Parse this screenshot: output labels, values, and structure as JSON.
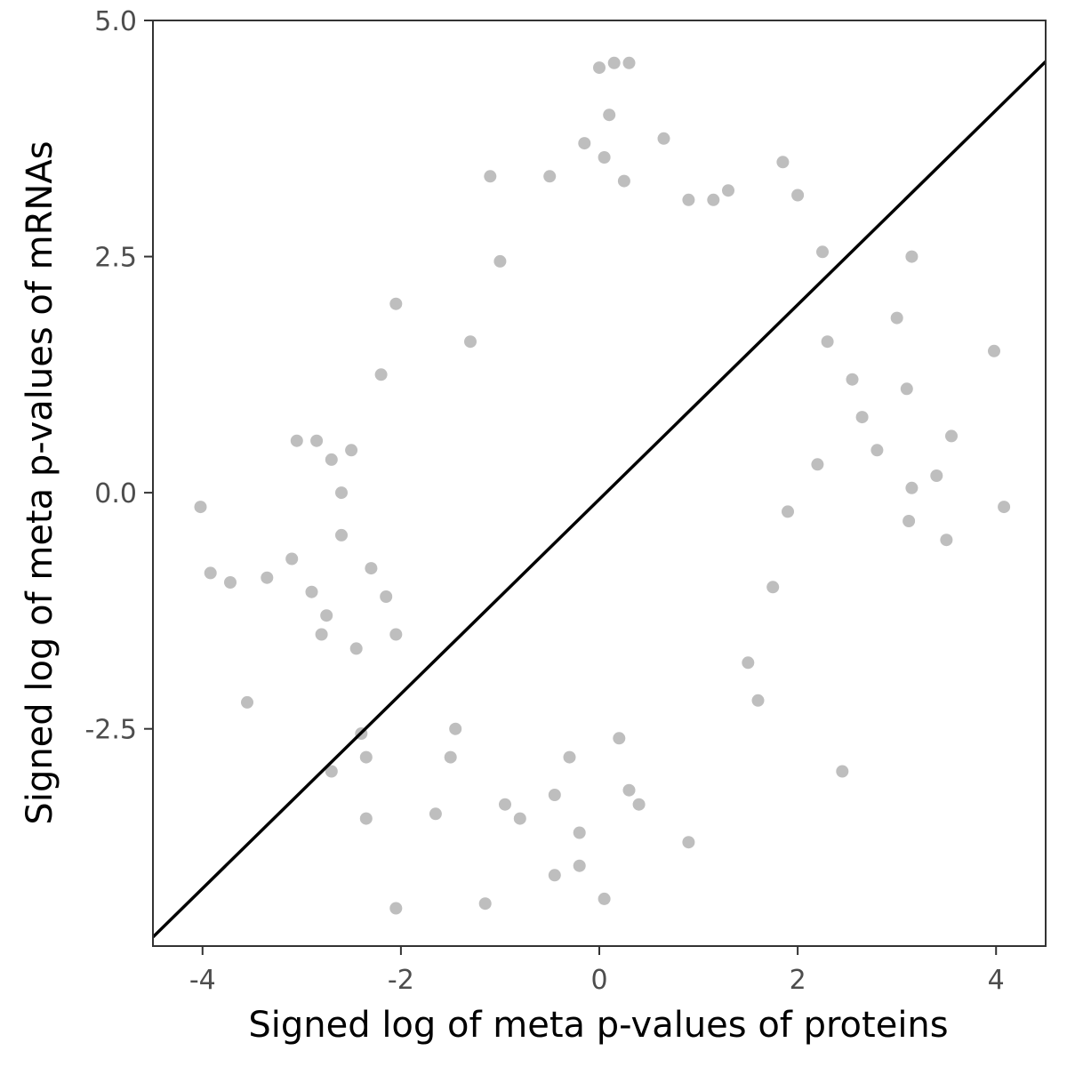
{
  "chart_data": {
    "type": "scatter",
    "title": "",
    "xlabel": "Signed log of meta p-values of proteins",
    "ylabel": "Signed log of meta p-values of mRNAs",
    "xlim": [
      -4.5,
      4.5
    ],
    "ylim": [
      -4.8,
      5.0
    ],
    "x_ticks": [
      -4,
      -2,
      0,
      2,
      4
    ],
    "x_tick_labels": [
      "-4",
      "-2",
      "0",
      "2",
      "4"
    ],
    "y_ticks": [
      -2.5,
      0.0,
      2.5,
      5.0
    ],
    "y_tick_labels": [
      "-2.5",
      "0.0",
      "2.5",
      "5.0"
    ],
    "grid": false,
    "legend": "none",
    "point_color": "#bebebe",
    "line_color": "#000000",
    "fit_line": {
      "slope": 1.03,
      "intercept": -0.07
    },
    "series": [
      {
        "points": [
          [
            -4.02,
            -0.15
          ],
          [
            -3.92,
            -0.85
          ],
          [
            -3.72,
            -0.95
          ],
          [
            -3.55,
            -2.22
          ],
          [
            -3.35,
            -0.9
          ],
          [
            -3.05,
            0.55
          ],
          [
            -2.85,
            0.55
          ],
          [
            -2.75,
            -1.3
          ],
          [
            -2.7,
            -2.95
          ],
          [
            -2.7,
            0.35
          ],
          [
            -2.6,
            -0.45
          ],
          [
            -2.45,
            -1.65
          ],
          [
            -2.4,
            -2.55
          ],
          [
            -2.35,
            -2.8
          ],
          [
            -2.35,
            -3.45
          ],
          [
            -2.2,
            1.25
          ],
          [
            -2.05,
            2.0
          ],
          [
            -2.05,
            -4.4
          ],
          [
            -2.05,
            -1.5
          ],
          [
            -1.65,
            -3.4
          ],
          [
            -1.45,
            -2.5
          ],
          [
            -1.3,
            1.6
          ],
          [
            -1.15,
            -4.35
          ],
          [
            -1.1,
            3.35
          ],
          [
            -1.0,
            2.45
          ],
          [
            -0.95,
            -3.3
          ],
          [
            -0.8,
            -3.45
          ],
          [
            -0.5,
            3.35
          ],
          [
            -0.45,
            -4.05
          ],
          [
            -0.45,
            -3.2
          ],
          [
            -0.2,
            -3.6
          ],
          [
            -0.2,
            -3.95
          ],
          [
            0.0,
            4.5
          ],
          [
            0.05,
            -4.3
          ],
          [
            0.1,
            4.0
          ],
          [
            0.15,
            4.55
          ],
          [
            0.25,
            3.3
          ],
          [
            0.3,
            4.55
          ],
          [
            0.3,
            -3.15
          ],
          [
            0.4,
            -3.3
          ],
          [
            0.65,
            3.75
          ],
          [
            0.9,
            -3.7
          ],
          [
            0.9,
            3.1
          ],
          [
            1.15,
            3.1
          ],
          [
            1.5,
            -1.8
          ],
          [
            1.85,
            3.5
          ],
          [
            2.0,
            3.15
          ],
          [
            2.25,
            2.55
          ],
          [
            2.45,
            -2.95
          ],
          [
            2.8,
            0.45
          ],
          [
            3.0,
            1.85
          ],
          [
            3.1,
            1.1
          ],
          [
            3.12,
            -0.3
          ],
          [
            3.15,
            0.05
          ],
          [
            3.15,
            2.5
          ],
          [
            3.4,
            0.18
          ],
          [
            3.5,
            -0.5
          ],
          [
            3.55,
            0.6
          ],
          [
            3.98,
            1.5
          ],
          [
            4.08,
            -0.15
          ],
          [
            -2.9,
            -1.05
          ],
          [
            -2.6,
            0.0
          ],
          [
            -2.3,
            -0.8
          ],
          [
            -2.5,
            0.45
          ],
          [
            -2.15,
            -1.1
          ],
          [
            1.9,
            -0.2
          ],
          [
            2.3,
            1.6
          ],
          [
            2.55,
            1.2
          ],
          [
            2.2,
            0.3
          ],
          [
            1.75,
            -1.0
          ],
          [
            -0.15,
            3.7
          ],
          [
            0.05,
            3.55
          ],
          [
            -0.3,
            -2.8
          ],
          [
            0.2,
            -2.6
          ],
          [
            1.3,
            3.2
          ],
          [
            2.65,
            0.8
          ],
          [
            -3.1,
            -0.7
          ],
          [
            -2.8,
            -1.5
          ],
          [
            1.6,
            -2.2
          ],
          [
            -1.5,
            -2.8
          ]
        ]
      }
    ]
  }
}
